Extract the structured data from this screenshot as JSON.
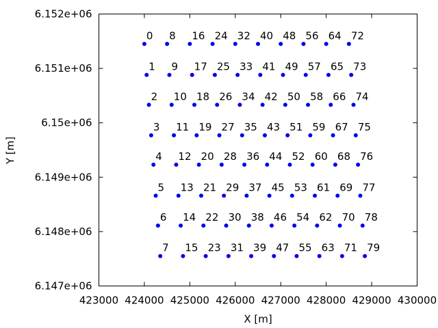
{
  "chart_data": {
    "type": "scatter",
    "title": "",
    "xlabel": "X [m]",
    "ylabel": "Y [m]",
    "xlim": [
      423000,
      430000
    ],
    "ylim": [
      6147000,
      6152000
    ],
    "xticks": [
      423000,
      424000,
      425000,
      426000,
      427000,
      428000,
      429000,
      430000
    ],
    "xtick_labels": [
      "423000",
      "424000",
      "425000",
      "426000",
      "427000",
      "428000",
      "429000",
      "430000"
    ],
    "yticks": [
      6147000,
      6148000,
      6149000,
      6150000,
      6151000,
      6152000
    ],
    "ytick_labels": [
      "6.147e+06",
      "6.148e+06",
      "6.149e+06",
      "6.15e+06",
      "6.151e+06",
      "6.152e+06"
    ],
    "grid": false,
    "legend": "none",
    "marker_color": "#0000ee",
    "points": [
      {
        "label": "0",
        "x": 424000,
        "y": 6151450
      },
      {
        "label": "1",
        "x": 424050,
        "y": 6150880
      },
      {
        "label": "2",
        "x": 424100,
        "y": 6150330
      },
      {
        "label": "3",
        "x": 424150,
        "y": 6149770
      },
      {
        "label": "4",
        "x": 424200,
        "y": 6149230
      },
      {
        "label": "5",
        "x": 424250,
        "y": 6148660
      },
      {
        "label": "6",
        "x": 424300,
        "y": 6148110
      },
      {
        "label": "7",
        "x": 424350,
        "y": 6147550
      },
      {
        "label": "8",
        "x": 424500,
        "y": 6151450
      },
      {
        "label": "9",
        "x": 424550,
        "y": 6150880
      },
      {
        "label": "10",
        "x": 424600,
        "y": 6150330
      },
      {
        "label": "11",
        "x": 424650,
        "y": 6149770
      },
      {
        "label": "12",
        "x": 424700,
        "y": 6149230
      },
      {
        "label": "13",
        "x": 424750,
        "y": 6148660
      },
      {
        "label": "14",
        "x": 424800,
        "y": 6148110
      },
      {
        "label": "15",
        "x": 424850,
        "y": 6147550
      },
      {
        "label": "16",
        "x": 425000,
        "y": 6151450
      },
      {
        "label": "17",
        "x": 425050,
        "y": 6150880
      },
      {
        "label": "18",
        "x": 425100,
        "y": 6150330
      },
      {
        "label": "19",
        "x": 425150,
        "y": 6149770
      },
      {
        "label": "20",
        "x": 425200,
        "y": 6149230
      },
      {
        "label": "21",
        "x": 425250,
        "y": 6148660
      },
      {
        "label": "22",
        "x": 425300,
        "y": 6148110
      },
      {
        "label": "23",
        "x": 425350,
        "y": 6147550
      },
      {
        "label": "24",
        "x": 425500,
        "y": 6151450
      },
      {
        "label": "25",
        "x": 425550,
        "y": 6150880
      },
      {
        "label": "26",
        "x": 425600,
        "y": 6150330
      },
      {
        "label": "27",
        "x": 425650,
        "y": 6149770
      },
      {
        "label": "28",
        "x": 425700,
        "y": 6149230
      },
      {
        "label": "29",
        "x": 425750,
        "y": 6148660
      },
      {
        "label": "30",
        "x": 425800,
        "y": 6148110
      },
      {
        "label": "31",
        "x": 425850,
        "y": 6147550
      },
      {
        "label": "32",
        "x": 426000,
        "y": 6151450
      },
      {
        "label": "33",
        "x": 426050,
        "y": 6150880
      },
      {
        "label": "34",
        "x": 426100,
        "y": 6150330
      },
      {
        "label": "35",
        "x": 426150,
        "y": 6149770
      },
      {
        "label": "36",
        "x": 426200,
        "y": 6149230
      },
      {
        "label": "37",
        "x": 426250,
        "y": 6148660
      },
      {
        "label": "38",
        "x": 426300,
        "y": 6148110
      },
      {
        "label": "39",
        "x": 426350,
        "y": 6147550
      },
      {
        "label": "40",
        "x": 426500,
        "y": 6151450
      },
      {
        "label": "41",
        "x": 426550,
        "y": 6150880
      },
      {
        "label": "42",
        "x": 426600,
        "y": 6150330
      },
      {
        "label": "43",
        "x": 426650,
        "y": 6149770
      },
      {
        "label": "44",
        "x": 426700,
        "y": 6149230
      },
      {
        "label": "45",
        "x": 426750,
        "y": 6148660
      },
      {
        "label": "46",
        "x": 426800,
        "y": 6148110
      },
      {
        "label": "47",
        "x": 426850,
        "y": 6147550
      },
      {
        "label": "48",
        "x": 427000,
        "y": 6151450
      },
      {
        "label": "49",
        "x": 427050,
        "y": 6150880
      },
      {
        "label": "50",
        "x": 427100,
        "y": 6150330
      },
      {
        "label": "51",
        "x": 427150,
        "y": 6149770
      },
      {
        "label": "52",
        "x": 427200,
        "y": 6149230
      },
      {
        "label": "53",
        "x": 427250,
        "y": 6148660
      },
      {
        "label": "54",
        "x": 427300,
        "y": 6148110
      },
      {
        "label": "55",
        "x": 427350,
        "y": 6147550
      },
      {
        "label": "56",
        "x": 427500,
        "y": 6151450
      },
      {
        "label": "57",
        "x": 427550,
        "y": 6150880
      },
      {
        "label": "58",
        "x": 427600,
        "y": 6150330
      },
      {
        "label": "59",
        "x": 427650,
        "y": 6149770
      },
      {
        "label": "60",
        "x": 427700,
        "y": 6149230
      },
      {
        "label": "61",
        "x": 427750,
        "y": 6148660
      },
      {
        "label": "62",
        "x": 427800,
        "y": 6148110
      },
      {
        "label": "63",
        "x": 427850,
        "y": 6147550
      },
      {
        "label": "64",
        "x": 428000,
        "y": 6151450
      },
      {
        "label": "65",
        "x": 428050,
        "y": 6150880
      },
      {
        "label": "66",
        "x": 428100,
        "y": 6150330
      },
      {
        "label": "67",
        "x": 428150,
        "y": 6149770
      },
      {
        "label": "68",
        "x": 428200,
        "y": 6149230
      },
      {
        "label": "69",
        "x": 428250,
        "y": 6148660
      },
      {
        "label": "70",
        "x": 428300,
        "y": 6148110
      },
      {
        "label": "71",
        "x": 428350,
        "y": 6147550
      },
      {
        "label": "72",
        "x": 428500,
        "y": 6151450
      },
      {
        "label": "73",
        "x": 428550,
        "y": 6150880
      },
      {
        "label": "74",
        "x": 428600,
        "y": 6150330
      },
      {
        "label": "75",
        "x": 428650,
        "y": 6149770
      },
      {
        "label": "76",
        "x": 428700,
        "y": 6149230
      },
      {
        "label": "77",
        "x": 428750,
        "y": 6148660
      },
      {
        "label": "78",
        "x": 428800,
        "y": 6148110
      },
      {
        "label": "79",
        "x": 428850,
        "y": 6147550
      }
    ]
  }
}
